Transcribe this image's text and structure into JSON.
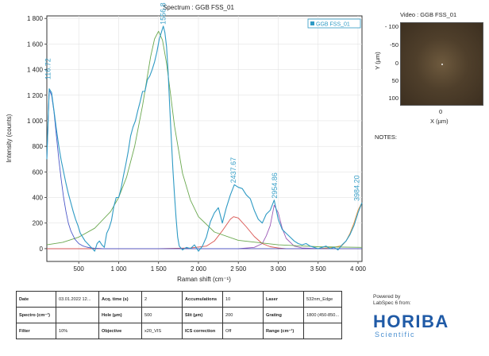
{
  "chart_data": {
    "type": "line",
    "title": "Spectrum : GGB FSS_01",
    "xlabel": "Raman shift (cm⁻¹)",
    "ylabel": "Intensity (counts)",
    "xlim": [
      100,
      4050
    ],
    "ylim": [
      -100,
      1820
    ],
    "x_ticks": [
      {
        "value": 500,
        "label": "500"
      },
      {
        "value": 1000,
        "label": "1 000"
      },
      {
        "value": 1500,
        "label": "1 500"
      },
      {
        "value": 2000,
        "label": "2 000"
      },
      {
        "value": 2500,
        "label": "2 500"
      },
      {
        "value": 3000,
        "label": "3 000"
      },
      {
        "value": 3500,
        "label": "3 500"
      },
      {
        "value": 4000,
        "label": "4 000"
      }
    ],
    "y_ticks": [
      {
        "value": 0,
        "label": "0"
      },
      {
        "value": 200,
        "label": "200"
      },
      {
        "value": 400,
        "label": "400"
      },
      {
        "value": 600,
        "label": "600"
      },
      {
        "value": 800,
        "label": "800"
      },
      {
        "value": 1000,
        "label": "1 000"
      },
      {
        "value": 1200,
        "label": "1 200"
      },
      {
        "value": 1400,
        "label": "1 400"
      },
      {
        "value": 1600,
        "label": "1 600"
      },
      {
        "value": 1800,
        "label": "1 800"
      }
    ],
    "grid": true,
    "legend": {
      "position": "top-right",
      "entries": [
        "GGB FSS_01"
      ]
    },
    "series": [
      {
        "name": "GGB FSS_01",
        "color": "#2e9ac4",
        "x": [
          100,
          130,
          160,
          190,
          220,
          250,
          280,
          310,
          340,
          370,
          400,
          430,
          460,
          490,
          520,
          550,
          580,
          610,
          640,
          670,
          700,
          730,
          760,
          790,
          820,
          850,
          880,
          910,
          940,
          970,
          1000,
          1030,
          1060,
          1090,
          1120,
          1150,
          1180,
          1210,
          1240,
          1270,
          1300,
          1330,
          1360,
          1390,
          1420,
          1450,
          1480,
          1510,
          1540,
          1560,
          1580,
          1600,
          1620,
          1640,
          1660,
          1680,
          1700,
          1720,
          1740,
          1760,
          1800,
          1850,
          1900,
          1950,
          2000,
          2050,
          2100,
          2150,
          2200,
          2250,
          2300,
          2350,
          2400,
          2450,
          2500,
          2550,
          2600,
          2650,
          2700,
          2750,
          2800,
          2850,
          2900,
          2950,
          3000,
          3050,
          3100,
          3150,
          3200,
          3250,
          3300,
          3350,
          3400,
          3450,
          3500,
          3550,
          3600,
          3650,
          3700,
          3750,
          3800,
          3850,
          3900,
          3950,
          4000,
          4050
        ],
        "y": [
          700,
          1250,
          1220,
          1080,
          930,
          800,
          690,
          600,
          510,
          430,
          360,
          290,
          230,
          180,
          120,
          90,
          60,
          40,
          20,
          0,
          -20,
          40,
          60,
          30,
          10,
          120,
          160,
          220,
          330,
          400,
          400,
          470,
          570,
          660,
          760,
          880,
          950,
          1000,
          1080,
          1150,
          1230,
          1230,
          1320,
          1350,
          1400,
          1460,
          1540,
          1640,
          1700,
          1740,
          1690,
          1580,
          1380,
          1110,
          860,
          620,
          420,
          240,
          90,
          20,
          -10,
          10,
          0,
          30,
          -20,
          20,
          90,
          210,
          280,
          320,
          200,
          320,
          420,
          500,
          480,
          470,
          420,
          390,
          300,
          230,
          200,
          270,
          300,
          380,
          230,
          150,
          120,
          90,
          60,
          40,
          30,
          40,
          20,
          10,
          0,
          10,
          20,
          0,
          10,
          -10,
          30,
          60,
          110,
          180,
          280,
          360
        ]
      },
      {
        "name": "",
        "color": "#4b57c8",
        "x": [
          100,
          130,
          160,
          190,
          220,
          250,
          280,
          310,
          340,
          370,
          400,
          450,
          500,
          550,
          600,
          650,
          700,
          800,
          900,
          1000,
          1200,
          1500,
          2000,
          3000,
          4050
        ],
        "y": [
          700,
          1240,
          1200,
          1070,
          880,
          700,
          540,
          400,
          290,
          200,
          140,
          75,
          40,
          22,
          12,
          6,
          3,
          0,
          0,
          0,
          0,
          0,
          0,
          0,
          0
        ]
      },
      {
        "name": "",
        "color": "#6aa84f",
        "x": [
          100,
          300,
          500,
          700,
          900,
          1000,
          1100,
          1200,
          1300,
          1400,
          1450,
          1500,
          1550,
          1600,
          1650,
          1700,
          1800,
          1900,
          2000,
          2200,
          2500,
          3000,
          3500,
          4050
        ],
        "y": [
          30,
          50,
          90,
          160,
          290,
          400,
          560,
          800,
          1120,
          1500,
          1640,
          1700,
          1630,
          1450,
          1210,
          960,
          590,
          380,
          250,
          130,
          65,
          30,
          15,
          10
        ]
      },
      {
        "name": "",
        "color": "#d9534f",
        "x": [
          100,
          1500,
          1900,
          2100,
          2200,
          2300,
          2400,
          2440,
          2500,
          2600,
          2700,
          2800,
          2900,
          3000,
          3100,
          3200,
          3500,
          4050
        ],
        "y": [
          0,
          0,
          5,
          20,
          60,
          140,
          230,
          250,
          240,
          170,
          95,
          40,
          15,
          5,
          0,
          0,
          0,
          0
        ]
      },
      {
        "name": "",
        "color": "#9b59b6",
        "x": [
          100,
          2500,
          2700,
          2800,
          2850,
          2900,
          2950,
          3000,
          3050,
          3100,
          3200,
          3300,
          3500,
          4050
        ],
        "y": [
          0,
          0,
          10,
          40,
          100,
          180,
          340,
          280,
          160,
          80,
          20,
          5,
          0,
          0
        ]
      },
      {
        "name": "",
        "color": "#e8913a",
        "x": [
          100,
          3000,
          3500,
          3700,
          3800,
          3850,
          3900,
          3950,
          4000,
          4050
        ],
        "y": [
          0,
          0,
          0,
          10,
          25,
          60,
          120,
          200,
          300,
          360
        ]
      }
    ],
    "annotations": [
      {
        "x": 116.72,
        "y": 1310,
        "text": "116.72"
      },
      {
        "x": 1556.8,
        "y": 1740,
        "text": "1556.8"
      },
      {
        "x": 2437.67,
        "y": 500,
        "text": "2437.67"
      },
      {
        "x": 2954.86,
        "y": 380,
        "text": "2954.86"
      },
      {
        "x": 3984.2,
        "y": 360,
        "text": "3984.20"
      }
    ]
  },
  "video": {
    "title": "Video : GGB FSS_01",
    "y_ticks": [
      "- 100",
      "-50",
      "0",
      "50",
      "100"
    ],
    "ylabel": "Y (µm)",
    "x_tick": "0",
    "xlabel": "X (µm)"
  },
  "notes_label": "NOTES:",
  "info_table": [
    [
      "Date",
      "03.01.2022 12...",
      "Acq. time (s)",
      "2",
      "Accumulations",
      "10",
      "Laser",
      "532nm_Edge"
    ],
    [
      "Spectro (cm⁻¹)",
      "",
      "Hole (µm)",
      "500",
      "Slit (µm)",
      "200",
      "Grating",
      "1800 (450-850..."
    ],
    [
      "Filter",
      "10%",
      "Objective",
      "x20_VIS",
      "ICS correction",
      "Off",
      "Range (cm⁻¹)",
      ""
    ]
  ],
  "brand": {
    "powered_line1": "Powered by",
    "powered_line2": "LabSpec 6 from:",
    "logo": "HORIBA",
    "tagline": "Scientific"
  }
}
